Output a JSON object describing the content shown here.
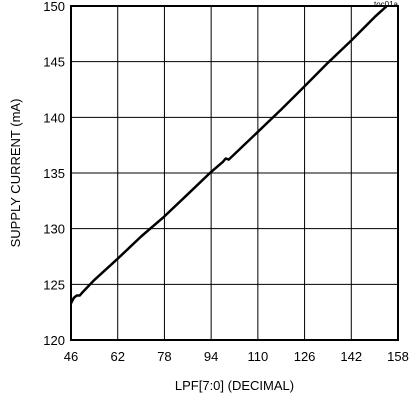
{
  "chart_data": {
    "type": "line",
    "title": "",
    "xlabel": "LPF[7:0] (DECIMAL)",
    "ylabel": "SUPPLY CURRENT (mA)",
    "xlim": [
      46,
      158
    ],
    "ylim": [
      120,
      150
    ],
    "xticks": [
      46,
      62,
      78,
      94,
      110,
      126,
      142,
      158
    ],
    "yticks": [
      120,
      125,
      130,
      135,
      140,
      145,
      150
    ],
    "grid": true,
    "figure_code": "toc01a",
    "series": [
      {
        "color": "#000000",
        "x": [
          46,
          47,
          48,
          49,
          50,
          54,
          62,
          70,
          78,
          86,
          94,
          98,
          99,
          100,
          102,
          110,
          118,
          126,
          134,
          142,
          150,
          155,
          157
        ],
        "y": [
          123.3,
          123.8,
          124.0,
          124.0,
          124.3,
          125.4,
          127.3,
          129.3,
          131.1,
          133.1,
          135.1,
          136.0,
          136.3,
          136.2,
          136.7,
          138.7,
          140.7,
          142.8,
          144.9,
          146.9,
          149.0,
          150.2,
          150.8
        ]
      }
    ]
  }
}
